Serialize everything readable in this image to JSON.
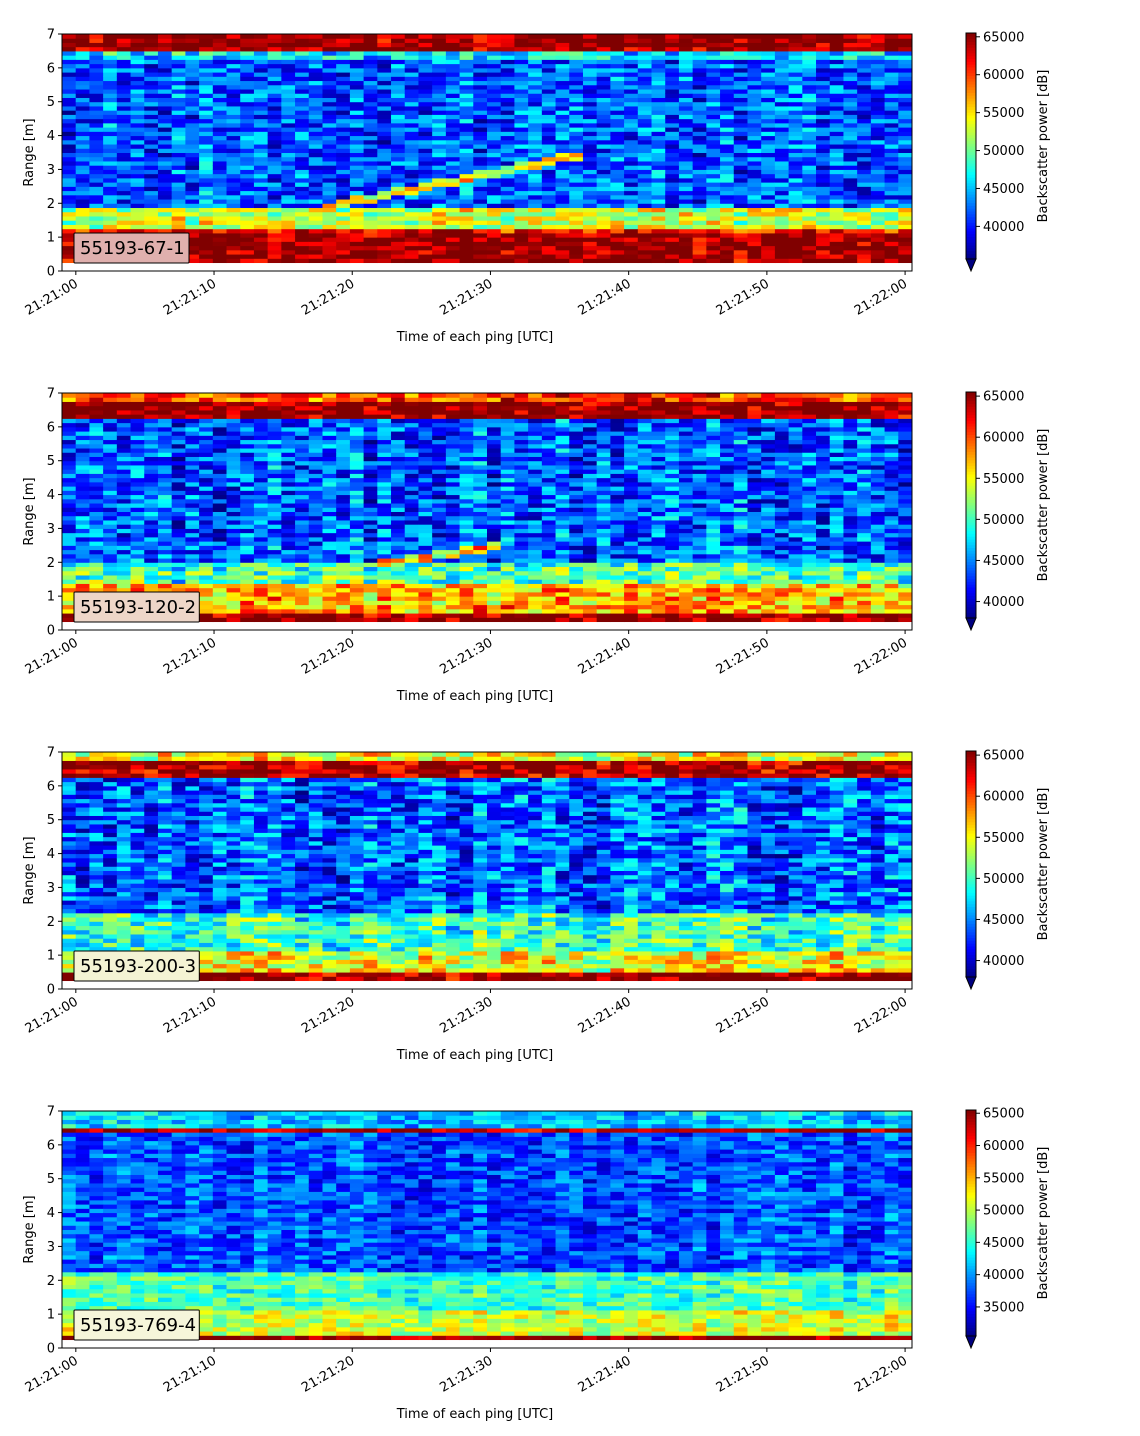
{
  "chart_data": [
    {
      "type": "heatmap",
      "label": "55193-67-1",
      "xlabel": "Time of each ping [UTC]",
      "ylabel": "Range [m]",
      "colorbar_label": "Backscatter power [dB]",
      "colormap": "jet",
      "colorbar_extend": "min",
      "label_box_color": "#e0b0ae",
      "x_tick_labels": [
        "21:21:00",
        "21:21:10",
        "21:21:20",
        "21:21:30",
        "21:21:40",
        "21:21:50",
        "21:22:00"
      ],
      "x_range_seconds": [
        -1,
        60.5
      ],
      "y_ticks": [
        0,
        1,
        2,
        3,
        4,
        5,
        6,
        7
      ],
      "ylim": [
        0,
        7
      ],
      "data_range_m": [
        0.25,
        7.0
      ],
      "colorbar_ticks": [
        40000,
        45000,
        50000,
        55000,
        60000,
        65000
      ],
      "clim": [
        35700,
        65500
      ],
      "profile": {
        "bands": [
          {
            "range_m": [
              0.25,
              1.15
            ],
            "value": 65500
          },
          {
            "range_m": [
              1.15,
              1.3
            ],
            "value": 62000
          },
          {
            "range_m": [
              1.3,
              1.9
            ],
            "value": 53000
          },
          {
            "range_m": [
              6.2,
              6.45
            ],
            "value": 46000
          },
          {
            "range_m": [
              6.45,
              7.0
            ],
            "value": 65500
          }
        ],
        "background": 42000,
        "noise": 4500,
        "tracks": [
          {
            "start_seconds": 18,
            "end_seconds": 37,
            "start_range_m": 1.9,
            "end_range_m": 3.5,
            "value": 54000
          }
        ]
      }
    },
    {
      "type": "heatmap",
      "label": "55193-120-2",
      "xlabel": "Time of each ping [UTC]",
      "ylabel": "Range [m]",
      "colorbar_label": "Backscatter power [dB]",
      "colormap": "jet",
      "colorbar_extend": "min",
      "label_box_color": "#eed6c8",
      "x_tick_labels": [
        "21:21:00",
        "21:21:10",
        "21:21:20",
        "21:21:30",
        "21:21:40",
        "21:21:50",
        "21:22:00"
      ],
      "x_range_seconds": [
        -1,
        60.5
      ],
      "y_ticks": [
        0,
        1,
        2,
        3,
        4,
        5,
        6,
        7
      ],
      "ylim": [
        0,
        7
      ],
      "data_range_m": [
        0.25,
        7.0
      ],
      "colorbar_ticks": [
        40000,
        45000,
        50000,
        55000,
        60000,
        65000
      ],
      "clim": [
        38000,
        65500
      ],
      "profile": {
        "bands": [
          {
            "range_m": [
              0.25,
              0.55
            ],
            "value": 65500
          },
          {
            "range_m": [
              0.55,
              1.4
            ],
            "value": 57000
          },
          {
            "range_m": [
              1.4,
              2.0
            ],
            "value": 50000
          },
          {
            "range_m": [
              6.25,
              6.7
            ],
            "value": 65500
          },
          {
            "range_m": [
              6.7,
              7.0
            ],
            "value": 60000
          }
        ],
        "background": 43500,
        "noise": 4500,
        "tracks": [
          {
            "start_seconds": 22,
            "end_seconds": 31,
            "start_range_m": 1.95,
            "end_range_m": 2.5,
            "value": 56000
          }
        ]
      }
    },
    {
      "type": "heatmap",
      "label": "55193-200-3",
      "xlabel": "Time of each ping [UTC]",
      "ylabel": "Range [m]",
      "colorbar_label": "Backscatter power [dB]",
      "colormap": "jet",
      "colorbar_extend": "min",
      "label_box_color": "#f4f3d4",
      "x_tick_labels": [
        "21:21:00",
        "21:21:10",
        "21:21:20",
        "21:21:30",
        "21:21:40",
        "21:21:50",
        "21:22:00"
      ],
      "x_range_seconds": [
        -1,
        60.5
      ],
      "y_ticks": [
        0,
        1,
        2,
        3,
        4,
        5,
        6,
        7
      ],
      "ylim": [
        0,
        7
      ],
      "data_range_m": [
        0.25,
        7.0
      ],
      "colorbar_ticks": [
        40000,
        45000,
        50000,
        55000,
        60000,
        65000
      ],
      "clim": [
        38000,
        65500
      ],
      "profile": {
        "bands": [
          {
            "range_m": [
              0.25,
              0.45
            ],
            "value": 65500
          },
          {
            "range_m": [
              0.45,
              1.1
            ],
            "value": 55000
          },
          {
            "range_m": [
              1.1,
              2.2
            ],
            "value": 50000
          },
          {
            "range_m": [
              6.2,
              6.75
            ],
            "value": 64500
          },
          {
            "range_m": [
              6.75,
              7.0
            ],
            "value": 55000
          }
        ],
        "background": 44000,
        "noise": 4500,
        "tracks": []
      }
    },
    {
      "type": "heatmap",
      "label": "55193-769-4",
      "xlabel": "Time of each ping [UTC]",
      "ylabel": "Range [m]",
      "colorbar_label": "Backscatter power [dB]",
      "colormap": "jet",
      "colorbar_extend": "min",
      "label_box_color": "#f6f6da",
      "x_tick_labels": [
        "21:21:00",
        "21:21:10",
        "21:21:20",
        "21:21:30",
        "21:21:40",
        "21:21:50",
        "21:22:00"
      ],
      "x_range_seconds": [
        -1,
        60.5
      ],
      "y_ticks": [
        0,
        1,
        2,
        3,
        4,
        5,
        6,
        7
      ],
      "ylim": [
        0,
        7
      ],
      "data_range_m": [
        0.25,
        7.0
      ],
      "colorbar_ticks": [
        35000,
        40000,
        45000,
        50000,
        55000,
        60000,
        65000
      ],
      "clim": [
        30500,
        65500
      ],
      "profile": {
        "bands": [
          {
            "range_m": [
              0.25,
              0.35
            ],
            "value": 65500
          },
          {
            "range_m": [
              0.35,
              1.1
            ],
            "value": 51000
          },
          {
            "range_m": [
              1.1,
              2.3
            ],
            "value": 46000
          },
          {
            "range_m": [
              6.35,
              6.55
            ],
            "value": 64000
          },
          {
            "range_m": [
              6.55,
              7.0
            ],
            "value": 42000
          }
        ],
        "background": 37500,
        "noise": 4000,
        "tracks": []
      }
    }
  ]
}
